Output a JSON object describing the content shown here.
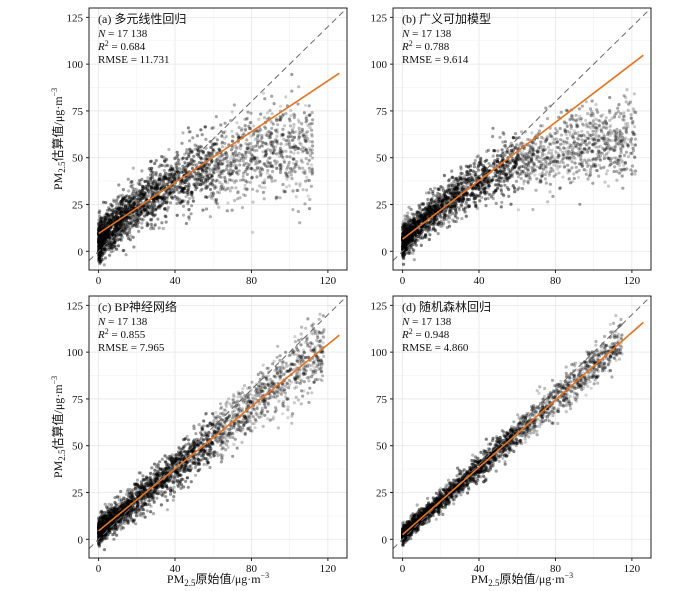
{
  "figure": {
    "ylabel": "PM2.5估算值/μg·m⁻³",
    "xlabel": "PM2.5原始值/μg·m⁻³",
    "ylabel_parts": [
      "PM",
      "2.5",
      "估算值/μg·m",
      "−3"
    ],
    "xlabel_parts": [
      "PM",
      "2.5",
      "原始值/μg·m",
      "−3"
    ]
  },
  "chart_data": [
    {
      "type": "scatter",
      "title": "(a) 多元线性回归",
      "stats": [
        "N = 17 138",
        "R2 = 0.684",
        "RMSE = 11.731"
      ],
      "n_label": "N = 17 138",
      "r2_label": "R2 = 0.684",
      "rmse_label": "RMSE = 11.731",
      "x_ticks": [
        0,
        40,
        80,
        120
      ],
      "y_ticks": [
        0,
        25,
        50,
        75,
        100,
        125
      ],
      "xlim": [
        -5,
        130
      ],
      "ylim": [
        -10,
        130
      ],
      "reference_line": "1:1 dashed",
      "fit_line": {
        "slope": 0.68,
        "intercept": 9.5,
        "x_range": [
          0,
          126
        ]
      },
      "point_cloud": {
        "x_range": [
          0,
          112
        ],
        "spread": 9,
        "curvature": "saturating",
        "cap": 68
      },
      "grid": true,
      "fit_color": "#e8731e"
    },
    {
      "type": "scatter",
      "title": "(b) 广义可加模型",
      "stats": [
        "N = 17 138",
        "R2 = 0.788",
        "RMSE = 9.614"
      ],
      "n_label": "N = 17 138",
      "r2_label": "R2 = 0.788",
      "rmse_label": "RMSE = 9.614",
      "x_ticks": [
        0,
        40,
        80,
        120
      ],
      "y_ticks": [
        0,
        25,
        50,
        75,
        100,
        125
      ],
      "xlim": [
        -5,
        130
      ],
      "ylim": [
        -10,
        130
      ],
      "reference_line": "1:1 dashed",
      "fit_line": {
        "slope": 0.78,
        "intercept": 6.5,
        "x_range": [
          0,
          126
        ]
      },
      "point_cloud": {
        "x_range": [
          0,
          122
        ],
        "spread": 7,
        "curvature": "saturating",
        "cap": 72
      },
      "grid": true,
      "fit_color": "#e8731e"
    },
    {
      "type": "scatter",
      "title": "(c) BP神经网络",
      "stats": [
        "N = 17 138",
        "R2 = 0.855",
        "RMSE = 7.965"
      ],
      "n_label": "N = 17 138",
      "r2_label": "R2 = 0.855",
      "rmse_label": "RMSE = 7.965",
      "x_ticks": [
        0,
        40,
        80,
        120
      ],
      "y_ticks": [
        0,
        25,
        50,
        75,
        100,
        125
      ],
      "xlim": [
        -5,
        130
      ],
      "ylim": [
        -10,
        130
      ],
      "reference_line": "1:1 dashed",
      "fit_line": {
        "slope": 0.83,
        "intercept": 4.5,
        "x_range": [
          0,
          126
        ]
      },
      "point_cloud": {
        "x_range": [
          0,
          118
        ],
        "spread": 6,
        "curvature": "linear",
        "cap": 105
      },
      "grid": true,
      "fit_color": "#e8731e"
    },
    {
      "type": "scatter",
      "title": "(d) 随机森林回归",
      "stats": [
        "N = 17 138",
        "R2 = 0.948",
        "RMSE = 4.860"
      ],
      "n_label": "N = 17 138",
      "r2_label": "R2 = 0.948",
      "rmse_label": "RMSE = 4.860",
      "x_ticks": [
        0,
        40,
        80,
        120
      ],
      "y_ticks": [
        0,
        25,
        50,
        75,
        100,
        125
      ],
      "xlim": [
        -5,
        130
      ],
      "ylim": [
        -10,
        130
      ],
      "reference_line": "1:1 dashed",
      "fit_line": {
        "slope": 0.9,
        "intercept": 2.5,
        "x_range": [
          0,
          126
        ]
      },
      "point_cloud": {
        "x_range": [
          0,
          115
        ],
        "spread": 3.5,
        "curvature": "linear",
        "cap": 110
      },
      "grid": true,
      "fit_color": "#e8731e"
    }
  ]
}
